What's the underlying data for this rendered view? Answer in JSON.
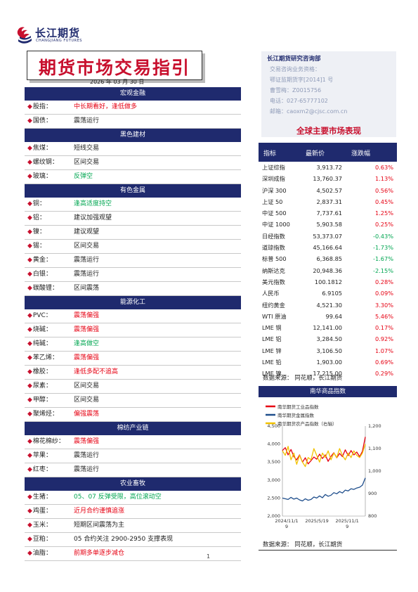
{
  "header": {
    "logo_cn": "长江期货",
    "logo_en": "CHANGJIANG FUTURES",
    "title": "期货市场交易指引",
    "date": "2026 年 03 月 30 日"
  },
  "sections": [
    {
      "title": "宏观金融",
      "rows": [
        {
          "name": "股指",
          "view": "中长期看好，逢低做多",
          "color": "red"
        },
        {
          "name": "国债",
          "view": "震荡运行",
          "color": "black"
        }
      ]
    },
    {
      "title": "黑色建材",
      "rows": [
        {
          "name": "焦煤",
          "view": "短线交易",
          "color": "black"
        },
        {
          "name": "螺纹钢",
          "view": "区间交易",
          "color": "black"
        },
        {
          "name": "玻璃",
          "view": "反弹空",
          "color": "green"
        }
      ]
    },
    {
      "title": "有色金属",
      "rows": [
        {
          "name": "铜",
          "view": "逢高适度持空",
          "color": "green"
        },
        {
          "name": "铝",
          "view": "建议加强观望",
          "color": "black"
        },
        {
          "name": "镍",
          "view": "建议观望",
          "color": "black"
        },
        {
          "name": "锡",
          "view": "区间交易",
          "color": "black"
        },
        {
          "name": "黄金",
          "view": "震荡运行",
          "color": "black"
        },
        {
          "name": "白银",
          "view": "震荡运行",
          "color": "black"
        },
        {
          "name": "碳酸锂",
          "view": "区间震荡",
          "color": "black"
        }
      ]
    },
    {
      "title": "能源化工",
      "rows": [
        {
          "name": "PVC",
          "view": "震荡偏强",
          "color": "red"
        },
        {
          "name": "烧碱",
          "view": "震荡偏强",
          "color": "red"
        },
        {
          "name": "纯碱",
          "view": "逢高做空",
          "color": "green"
        },
        {
          "name": "苯乙烯",
          "view": "震荡偏强",
          "color": "red"
        },
        {
          "name": "橡胶",
          "view": "逢低多配不追高",
          "color": "red"
        },
        {
          "name": "尿素",
          "view": "区间交易",
          "color": "black"
        },
        {
          "name": "甲醇",
          "view": "区间交易",
          "color": "black"
        },
        {
          "name": "聚烯烃",
          "view": "偏强震荡",
          "color": "red"
        }
      ]
    },
    {
      "title": "棉纺产业链",
      "rows": [
        {
          "name": "棉花棉纱",
          "view": "震荡偏强",
          "color": "red"
        },
        {
          "name": "苹果",
          "view": "震荡运行",
          "color": "black"
        },
        {
          "name": "红枣",
          "view": "震荡运行",
          "color": "black"
        }
      ]
    },
    {
      "title": "农业畜牧",
      "rows": [
        {
          "name": "生猪",
          "view": "05、07 反弹受限，高位滚动空",
          "color": "green"
        },
        {
          "name": "鸡蛋",
          "view": "近月合约谨慎追涨",
          "color": "red"
        },
        {
          "name": "玉米",
          "view": "短期区间震荡为主",
          "color": "black"
        },
        {
          "name": "豆粕",
          "view": "05 合约关注 2900-2950 支撑表现",
          "color": "black"
        },
        {
          "name": "油脂",
          "view": "前期多单逐步减仓",
          "color": "red"
        }
      ]
    }
  ],
  "info": {
    "org": "长江期货研究咨询部",
    "lines": [
      "交易咨询业务资格：",
      "鄂证监期货字[2014]1 号",
      "曹雪梅：Z0015756",
      "电话：027-65777102",
      "邮箱：caoxm2@cjsc.com.cn"
    ]
  },
  "market": {
    "title": "全球主要市场表现",
    "headers": [
      "指标",
      "最新价",
      "涨跌幅"
    ],
    "rows": [
      [
        "上证综指",
        "3,913.72",
        "0.63%"
      ],
      [
        "深圳成指",
        "13,760.37",
        "1.13%"
      ],
      [
        "沪深 300",
        "4,502.57",
        "0.56%"
      ],
      [
        "上证 50",
        "2,837.31",
        "0.45%"
      ],
      [
        "中证 500",
        "7,737.61",
        "1.25%"
      ],
      [
        "中证 1000",
        "5,903.58",
        "0.25%"
      ],
      [
        "日经指数",
        "53,373.07",
        "-0.43%"
      ],
      [
        "道琼指数",
        "45,166.64",
        "-1.73%"
      ],
      [
        "标普 500",
        "6,368.85",
        "-1.67%"
      ],
      [
        "纳斯达克",
        "20,948.36",
        "-2.15%"
      ],
      [
        "美元指数",
        "100.1812",
        "0.28%"
      ],
      [
        "人民币",
        "6.9105",
        "0.09%"
      ],
      [
        "纽约黄金",
        "4,521.30",
        "3.30%"
      ],
      [
        "WTI 原油",
        "99.64",
        "5.46%"
      ],
      [
        "LME 铜",
        "12,141.00",
        "0.17%"
      ],
      [
        "LME 铝",
        "3,284.50",
        "0.92%"
      ],
      [
        "LME 锌",
        "3,106.50",
        "1.07%"
      ],
      [
        "LME 铅",
        "1,903.00",
        "0.69%"
      ],
      [
        "LME 镍",
        "17,215.00",
        "0.29%"
      ]
    ],
    "source": "数据来源：   同花顺，长江期货"
  },
  "chart_data": {
    "type": "line",
    "title": "南华商品指数",
    "x_ticks": [
      "2024/11/1\n9",
      "2025/5/19",
      "2025/11/1\n9"
    ],
    "y_left_ticks": [
      "2,000",
      "2,500",
      "3,000",
      "3,500",
      "4,000",
      "4,500"
    ],
    "y_right_ticks": [
      "800",
      "900",
      "1,000",
      "1,100",
      "1,200"
    ],
    "ylim_left": [
      2000,
      4500
    ],
    "ylim_right": [
      800,
      1200
    ],
    "series": [
      {
        "name": "南华期货工业品指数",
        "color": "#e60012",
        "axis": "left",
        "values": [
          3820,
          3900,
          3700,
          3850,
          3650,
          3560,
          3700,
          3500,
          3620,
          3450,
          3540,
          3640,
          3580,
          3720,
          3600,
          3700,
          3520,
          3660,
          3760,
          3620,
          3740,
          3650,
          3840,
          3680,
          3820,
          3700,
          3780,
          3650,
          3800,
          4200
        ]
      },
      {
        "name": "南华期货金属指数",
        "color": "#1f4e8c",
        "axis": "left",
        "values": [
          2500,
          2480,
          2460,
          2520,
          2470,
          2500,
          2450,
          2420,
          2480,
          2440,
          2460,
          2530,
          2500,
          2560,
          2510,
          2600,
          2550,
          2580,
          2650,
          2620,
          2680,
          2640,
          2720,
          2700,
          2760,
          2740,
          2780,
          2800,
          2860,
          3060
        ]
      },
      {
        "name": "南华期货农产品指数（右轴）",
        "color": "#f2c200",
        "axis": "right",
        "values": [
          1090,
          1070,
          1110,
          1050,
          1080,
          1030,
          1070,
          1040,
          1020,
          1060,
          1050,
          1100,
          1070,
          1040,
          1080,
          1060,
          1090,
          1050,
          1080,
          1060,
          1100,
          1070,
          1050,
          1080,
          1060,
          1090,
          1070,
          1060,
          1080,
          1120
        ]
      }
    ],
    "source": "数据来源：  同花顺，长江期货"
  },
  "page": {
    "number": "1"
  }
}
